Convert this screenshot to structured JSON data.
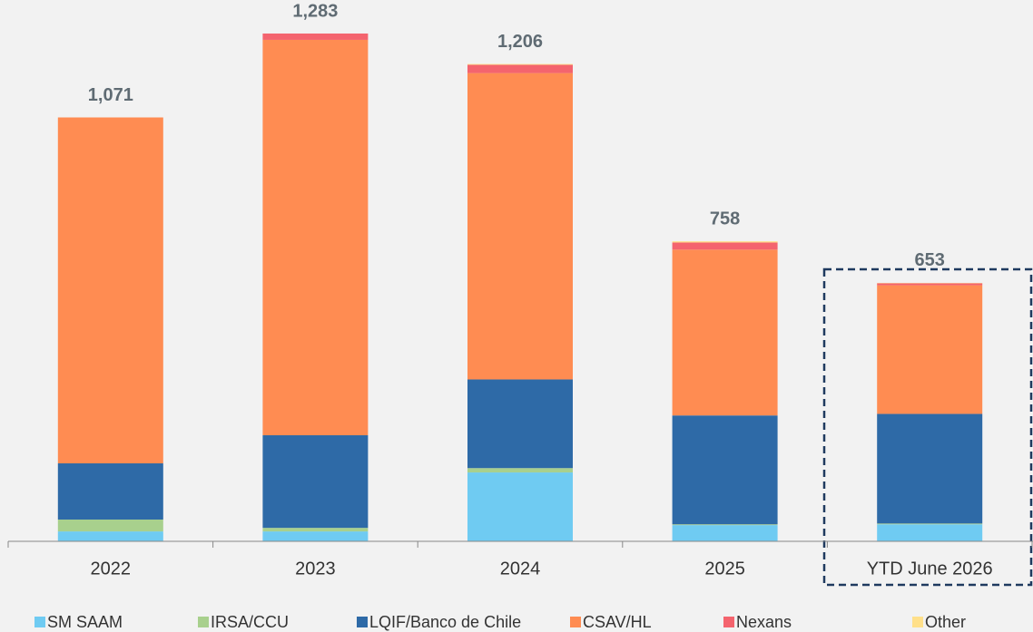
{
  "chart_data": {
    "type": "stacked_bar",
    "categories": [
      "2022",
      "2023",
      "2024",
      "2025",
      "YTD June 2026"
    ],
    "series": [
      {
        "name": "SM SAAM",
        "color": "#6fcbf2",
        "values": [
          25,
          25,
          174,
          41,
          43
        ]
      },
      {
        "name": "IRSA/CCU",
        "color": "#a8d08d",
        "values": [
          30,
          9,
          11,
          2,
          2
        ]
      },
      {
        "name": "LQIF/Banco de Chile",
        "color": "#2e6aa7",
        "values": [
          142,
          234,
          224,
          275,
          277
        ]
      },
      {
        "name": "CSAV/HL",
        "color": "#ff8c52",
        "values": [
          874,
          999,
          774,
          419,
          325
        ]
      },
      {
        "name": "Nexans",
        "color": "#f4646e",
        "values": [
          0,
          16,
          21,
          18,
          5
        ]
      },
      {
        "name": "Other",
        "color": "#ffe08a",
        "values": [
          0,
          0,
          2,
          3,
          1
        ]
      }
    ],
    "totals": [
      1071,
      1283,
      1206,
      758,
      653
    ],
    "total_labels": [
      "1,071",
      "1,283",
      "1,206",
      "758",
      "653"
    ]
  }
}
